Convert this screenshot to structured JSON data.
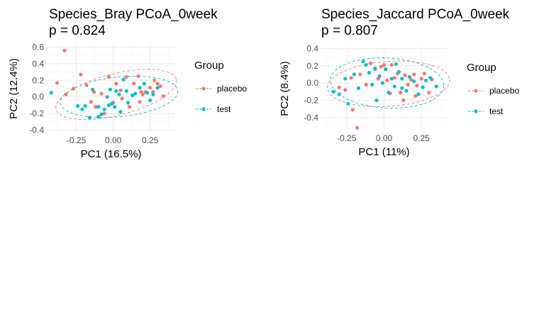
{
  "colors": {
    "placebo": "#F8766D",
    "test": "#00BFC4"
  },
  "chart_data": [
    {
      "type": "scatter",
      "title": "Species_Bray PCoA_0week",
      "subtitle": " p = 0.824",
      "xlabel": "PC1 (16.5%)",
      "ylabel": "PC2 (12.4%)",
      "xlim": [
        -0.45,
        0.42
      ],
      "ylim": [
        -0.43,
        0.63
      ],
      "xticks": [
        -0.25,
        0.0,
        0.25
      ],
      "xtick_labels": [
        "-0.25",
        "0.00",
        "0.25"
      ],
      "yticks": [
        -0.4,
        -0.2,
        0.0,
        0.2,
        0.4,
        0.6
      ],
      "ytick_labels": [
        "-0.4",
        "-0.2",
        "0.0",
        "0.2",
        "0.4",
        "0.6"
      ],
      "grid": true,
      "legend": {
        "title": "Group",
        "placement": "right",
        "entries": [
          "placebo",
          "test"
        ]
      },
      "series": [
        {
          "name": "placebo",
          "color": "#F8766D",
          "ellipse": {
            "cx": 0.02,
            "cy": 0.03,
            "rx": 0.42,
            "ry": 0.25,
            "angle": 14
          },
          "points": [
            [
              -0.33,
              0.56
            ],
            [
              -0.38,
              0.17
            ],
            [
              -0.32,
              0.03
            ],
            [
              -0.27,
              0.1
            ],
            [
              -0.22,
              0.27
            ],
            [
              -0.18,
              0.14
            ],
            [
              -0.15,
              -0.06
            ],
            [
              -0.12,
              -0.12
            ],
            [
              -0.08,
              0.04
            ],
            [
              -0.06,
              -0.2
            ],
            [
              -0.03,
              0.24
            ],
            [
              0.0,
              -0.07
            ],
            [
              0.02,
              0.16
            ],
            [
              0.05,
              0.08
            ],
            [
              0.09,
              0.24
            ],
            [
              0.11,
              -0.12
            ],
            [
              0.14,
              0.16
            ],
            [
              0.17,
              0.25
            ],
            [
              0.19,
              0.06
            ],
            [
              0.2,
              0.03
            ],
            [
              0.22,
              0.06
            ],
            [
              0.25,
              0.11
            ],
            [
              0.28,
              0.2
            ],
            [
              0.3,
              0.16
            ],
            [
              0.32,
              0.13
            ],
            [
              0.34,
              0.01
            ],
            [
              0.18,
              -0.06
            ],
            [
              -0.13,
              0.06
            ],
            [
              0.06,
              -0.02
            ],
            [
              0.27,
              0.06
            ]
          ]
        },
        {
          "name": "test",
          "color": "#00BFC4",
          "ellipse": {
            "cx": 0.04,
            "cy": 0.0,
            "rx": 0.4,
            "ry": 0.24,
            "angle": 6
          },
          "points": [
            [
              -0.42,
              0.05
            ],
            [
              -0.24,
              -0.11
            ],
            [
              -0.21,
              -0.15
            ],
            [
              -0.19,
              -0.11
            ],
            [
              -0.14,
              0.09
            ],
            [
              -0.1,
              -0.12
            ],
            [
              -0.1,
              -0.24
            ],
            [
              -0.08,
              -0.21
            ],
            [
              -0.06,
              -0.15
            ],
            [
              -0.04,
              0.0
            ],
            [
              -0.02,
              0.09
            ],
            [
              -0.01,
              -0.08
            ],
            [
              0.01,
              -0.12
            ],
            [
              0.02,
              0.07
            ],
            [
              0.04,
              0.03
            ],
            [
              0.05,
              -0.18
            ],
            [
              0.07,
              0.21
            ],
            [
              0.09,
              0.07
            ],
            [
              0.1,
              -0.07
            ],
            [
              0.13,
              0.02
            ],
            [
              0.15,
              0.04
            ],
            [
              0.18,
              0.11
            ],
            [
              0.21,
              0.16
            ],
            [
              0.23,
              0.05
            ],
            [
              0.25,
              -0.04
            ],
            [
              0.27,
              0.03
            ],
            [
              0.3,
              0.11
            ],
            [
              -0.16,
              -0.25
            ],
            [
              -0.03,
              -0.1
            ]
          ]
        }
      ]
    },
    {
      "type": "scatter",
      "title": "Species_Jaccard PCoA_0week",
      "subtitle": " p = 0.807",
      "xlabel": "PC1 (11%)",
      "ylabel": "PC2 (8.4%)",
      "xlim": [
        -0.42,
        0.42
      ],
      "ylim": [
        -0.55,
        0.42
      ],
      "xticks": [
        -0.25,
        0.0,
        0.25
      ],
      "xtick_labels": [
        "-0.25",
        "0.00",
        "0.25"
      ],
      "yticks": [
        -0.4,
        -0.2,
        0.0,
        0.2,
        0.4
      ],
      "ytick_labels": [
        "-0.4",
        "-0.2",
        "0.0",
        "0.2",
        "0.4"
      ],
      "grid": true,
      "legend": {
        "title": "Group",
        "placement": "right",
        "entries": [
          "placebo",
          "test"
        ]
      },
      "series": [
        {
          "name": "placebo",
          "color": "#F8766D",
          "ellipse": {
            "cx": 0.03,
            "cy": -0.01,
            "rx": 0.41,
            "ry": 0.26,
            "angle": 4
          },
          "points": [
            [
              -0.3,
              -0.05
            ],
            [
              -0.26,
              -0.08
            ],
            [
              -0.22,
              0.06
            ],
            [
              -0.21,
              -0.31
            ],
            [
              -0.18,
              -0.52
            ],
            [
              -0.16,
              0.1
            ],
            [
              -0.12,
              -0.02
            ],
            [
              -0.09,
              0.23
            ],
            [
              -0.06,
              0.16
            ],
            [
              -0.04,
              0.05
            ],
            [
              -0.02,
              0.19
            ],
            [
              0.0,
              0.21
            ],
            [
              0.02,
              0.03
            ],
            [
              0.05,
              0.21
            ],
            [
              0.07,
              0.06
            ],
            [
              0.09,
              0.11
            ],
            [
              0.11,
              -0.11
            ],
            [
              0.14,
              0.09
            ],
            [
              0.16,
              -0.02
            ],
            [
              0.18,
              0.04
            ],
            [
              0.2,
              0.1
            ],
            [
              0.22,
              -0.03
            ],
            [
              0.25,
              0.05
            ],
            [
              0.27,
              0.11
            ],
            [
              0.3,
              -0.11
            ],
            [
              0.32,
              0.04
            ],
            [
              0.21,
              -0.15
            ],
            [
              0.13,
              -0.2
            ],
            [
              0.04,
              -0.12
            ]
          ]
        },
        {
          "name": "test",
          "color": "#00BFC4",
          "ellipse": {
            "cx": 0.02,
            "cy": 0.0,
            "rx": 0.38,
            "ry": 0.29,
            "angle": -3
          },
          "points": [
            [
              -0.34,
              -0.1
            ],
            [
              -0.3,
              -0.13
            ],
            [
              -0.26,
              0.05
            ],
            [
              -0.24,
              -0.24
            ],
            [
              -0.2,
              0.1
            ],
            [
              -0.17,
              -0.06
            ],
            [
              -0.14,
              0.25
            ],
            [
              -0.12,
              0.21
            ],
            [
              -0.1,
              0.12
            ],
            [
              -0.08,
              -0.02
            ],
            [
              -0.06,
              0.17
            ],
            [
              -0.03,
              0.08
            ],
            [
              -0.01,
              0.0
            ],
            [
              0.01,
              0.16
            ],
            [
              0.03,
              -0.11
            ],
            [
              0.05,
              0.05
            ],
            [
              0.07,
              -0.04
            ],
            [
              0.08,
              0.22
            ],
            [
              0.1,
              0.13
            ],
            [
              0.12,
              -0.06
            ],
            [
              0.15,
              -0.09
            ],
            [
              0.17,
              0.07
            ],
            [
              0.2,
              0.02
            ],
            [
              0.23,
              -0.13
            ],
            [
              0.26,
              -0.05
            ],
            [
              0.28,
              0.03
            ],
            [
              0.31,
              0.06
            ],
            [
              0.35,
              -0.04
            ],
            [
              -0.05,
              -0.2
            ],
            [
              0.12,
              0.05
            ]
          ]
        }
      ]
    }
  ]
}
